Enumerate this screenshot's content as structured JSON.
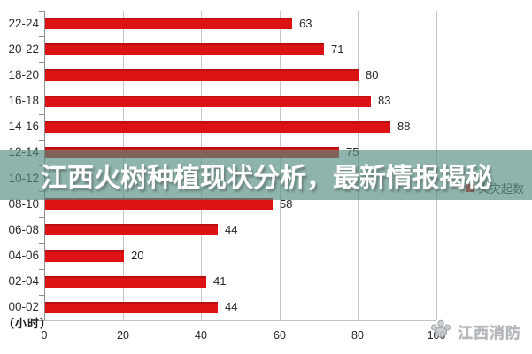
{
  "overlay": {
    "title": "江西火树种植现状分析，最新情报揭秘",
    "band_color": "#538d81",
    "band_opacity": 0.66,
    "text_color": "#ffffff"
  },
  "watermark": {
    "logo_icon": "paw-print-icon",
    "label": "江西消防"
  },
  "legend": {
    "label": "火灾起数",
    "marker_color": "#dd1214"
  },
  "axis": {
    "unit_label": "（小时）"
  },
  "chart_data": {
    "type": "bar",
    "orientation": "horizontal",
    "title": "",
    "categories": [
      "22-24",
      "20-22",
      "18-20",
      "16-18",
      "14-16",
      "12-14",
      "10-12",
      "08-10",
      "06-08",
      "04-06",
      "02-04",
      "00-02"
    ],
    "values": [
      63,
      71,
      80,
      83,
      88,
      75,
      null,
      58,
      44,
      20,
      41,
      44
    ],
    "x_ticks": [
      0,
      20,
      40,
      60,
      80,
      100
    ],
    "xlim": [
      0,
      100
    ],
    "xlabel": "",
    "ylabel": "（小时）",
    "legend_entries": [
      "火灾起数"
    ],
    "bar_color": "#dd1214",
    "grid": true,
    "gridline_color": "#c6c6c6"
  }
}
